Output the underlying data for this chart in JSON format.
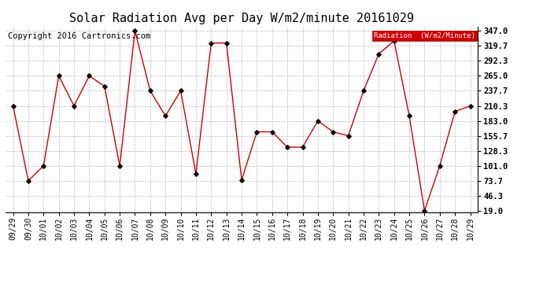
{
  "title": "Solar Radiation Avg per Day W/m2/minute 20161029",
  "copyright": "Copyright 2016 Cartronics.com",
  "legend_label": "Radiation  (W/m2/Minute)",
  "dates": [
    "09/29",
    "09/30",
    "10/01",
    "10/02",
    "10/03",
    "10/04",
    "10/05",
    "10/06",
    "10/07",
    "10/08",
    "10/09",
    "10/10",
    "10/11",
    "10/12",
    "10/13",
    "10/14",
    "10/15",
    "10/16",
    "10/17",
    "10/18",
    "10/19",
    "10/20",
    "10/21",
    "10/22",
    "10/23",
    "10/24",
    "10/25",
    "10/26",
    "10/27",
    "10/28",
    "10/29"
  ],
  "values": [
    210.3,
    73.7,
    101.0,
    265.0,
    210.3,
    265.0,
    246.0,
    101.0,
    347.0,
    237.7,
    192.0,
    237.7,
    86.0,
    325.0,
    325.0,
    75.0,
    163.0,
    163.0,
    135.0,
    135.0,
    183.0,
    163.0,
    155.7,
    237.7,
    305.0,
    329.0,
    192.0,
    19.0,
    101.0,
    200.0,
    210.3
  ],
  "line_color": "#cc0000",
  "marker_color": "#000000",
  "bg_color": "#ffffff",
  "grid_color": "#bbbbbb",
  "yticks": [
    19.0,
    46.3,
    73.7,
    101.0,
    128.3,
    155.7,
    183.0,
    210.3,
    237.7,
    265.0,
    292.3,
    319.7,
    347.0
  ],
  "ymin": 19.0,
  "ymax": 347.0,
  "legend_bg": "#cc0000",
  "legend_text_color": "#ffffff",
  "title_fontsize": 11,
  "copyright_fontsize": 7.5,
  "tick_fontsize": 7,
  "ytick_fontsize": 7.5
}
